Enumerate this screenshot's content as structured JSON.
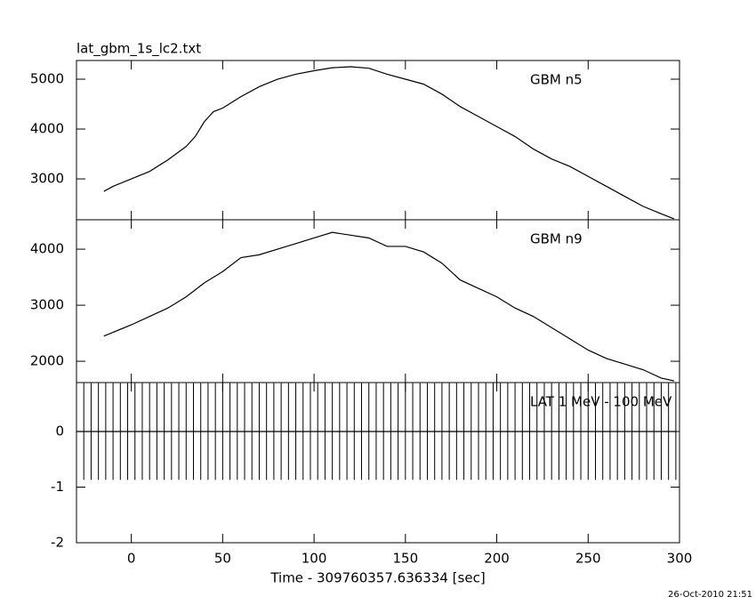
{
  "chart_data": [
    {
      "type": "line",
      "title": "lat_gbm_1s_lc2.txt",
      "xlim": [
        -30,
        300
      ],
      "ylim": [
        2180,
        5375
      ],
      "yticks": [
        3000,
        4000,
        5000
      ],
      "series": [
        {
          "name": "GBM n5",
          "color": "#000000",
          "x": [
            -15,
            -10,
            0,
            10,
            20,
            30,
            35,
            40,
            45,
            50,
            60,
            70,
            80,
            90,
            100,
            110,
            120,
            130,
            140,
            150,
            160,
            170,
            180,
            190,
            200,
            210,
            220,
            230,
            240,
            250,
            260,
            270,
            280,
            290,
            297
          ],
          "values": [
            2750,
            2850,
            3000,
            3150,
            3380,
            3650,
            3850,
            4150,
            4350,
            4420,
            4650,
            4850,
            5000,
            5100,
            5170,
            5230,
            5250,
            5220,
            5100,
            5000,
            4900,
            4700,
            4450,
            4250,
            4050,
            3850,
            3600,
            3400,
            3250,
            3050,
            2850,
            2650,
            2450,
            2300,
            2200
          ]
        }
      ]
    },
    {
      "type": "line",
      "xlim": [
        -30,
        300
      ],
      "ylim": [
        1620,
        4525
      ],
      "yticks": [
        2000,
        3000,
        4000
      ],
      "series": [
        {
          "name": "GBM n9",
          "color": "#000000",
          "x": [
            -15,
            0,
            10,
            20,
            30,
            40,
            50,
            60,
            70,
            80,
            90,
            100,
            110,
            120,
            130,
            140,
            150,
            160,
            170,
            180,
            190,
            200,
            210,
            220,
            230,
            240,
            250,
            260,
            270,
            280,
            290,
            297
          ],
          "values": [
            2450,
            2650,
            2800,
            2950,
            3150,
            3400,
            3600,
            3850,
            3900,
            4000,
            4100,
            4200,
            4300,
            4250,
            4200,
            4050,
            4050,
            3950,
            3750,
            3450,
            3300,
            3150,
            2950,
            2800,
            2600,
            2400,
            2200,
            2050,
            1950,
            1850,
            1700,
            1650
          ]
        }
      ]
    },
    {
      "type": "errorbar",
      "x_label": "Time - 309760357.636334 [sec]",
      "xlim": [
        -30,
        300
      ],
      "xticks": [
        0,
        50,
        100,
        150,
        200,
        250,
        300
      ],
      "ylim": [
        -2,
        0.88
      ],
      "yticks": [
        -2,
        -1,
        0
      ],
      "series": [
        {
          "name": "LAT 1 MeV - 100 MeV",
          "color": "#000000",
          "error": 0.87,
          "x": [
            -30,
            -26,
            -22,
            -18,
            -14,
            -10,
            -6,
            -2,
            2,
            6,
            10,
            14,
            18,
            22,
            26,
            30,
            34,
            38,
            42,
            46,
            50,
            54,
            58,
            62,
            66,
            70,
            74,
            78,
            82,
            86,
            90,
            94,
            98,
            102,
            106,
            110,
            114,
            118,
            122,
            126,
            130,
            134,
            138,
            142,
            146,
            150,
            154,
            158,
            162,
            166,
            170,
            174,
            178,
            182,
            186,
            190,
            194,
            198,
            202,
            206,
            210,
            214,
            218,
            222,
            226,
            230,
            234,
            238,
            242,
            246,
            250,
            254,
            258,
            262,
            266,
            270,
            274,
            278,
            282,
            286,
            290,
            294,
            298
          ],
          "values": [
            0,
            0,
            0,
            0,
            0,
            0,
            0,
            0,
            0,
            0,
            0,
            0,
            0,
            0,
            0,
            0,
            0,
            0,
            0,
            0,
            0,
            0,
            0,
            0,
            0,
            0,
            0,
            0,
            0,
            0,
            0,
            0,
            0,
            0,
            0,
            0,
            0,
            0,
            0,
            0,
            0,
            0,
            0,
            0,
            0,
            0,
            0,
            0,
            0,
            0,
            0,
            0,
            0,
            0,
            0,
            0,
            0,
            0,
            0,
            0,
            0,
            0,
            0,
            0,
            0,
            0,
            0,
            0,
            0,
            0,
            0,
            0,
            0,
            0,
            0,
            0,
            0,
            0,
            0,
            0,
            0,
            0,
            0
          ]
        }
      ]
    }
  ],
  "timestamp": "26-Oct-2010 21:51"
}
